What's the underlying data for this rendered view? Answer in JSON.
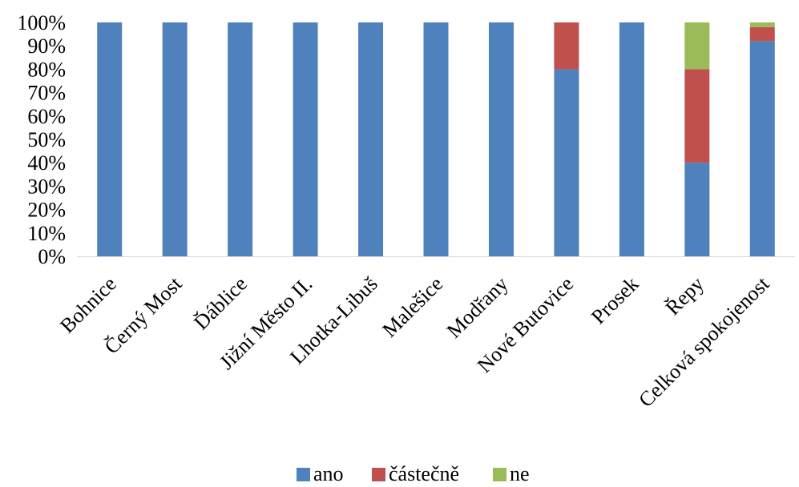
{
  "chart_data": {
    "type": "bar",
    "stacked": true,
    "percent_stacked": true,
    "categories": [
      "Bohnice",
      "Černý Most",
      "Ďáblice",
      "Jižní Město II.",
      "Lhotka-Libuš",
      "Malešice",
      "Modřany",
      "Nové Butovice",
      "Prosek",
      "Řepy",
      "Celková spokojenost"
    ],
    "series": [
      {
        "name": "ano",
        "color": "#4f81bd",
        "values": [
          100,
          100,
          100,
          100,
          100,
          100,
          100,
          80,
          100,
          40,
          92
        ]
      },
      {
        "name": "částečně",
        "color": "#c0504d",
        "values": [
          0,
          0,
          0,
          0,
          0,
          0,
          0,
          20,
          0,
          40,
          6
        ]
      },
      {
        "name": "ne",
        "color": "#9bbb59",
        "values": [
          0,
          0,
          0,
          0,
          0,
          0,
          0,
          0,
          0,
          20,
          2
        ]
      }
    ],
    "yticks": [
      "0%",
      "10%",
      "20%",
      "30%",
      "40%",
      "50%",
      "60%",
      "70%",
      "80%",
      "90%",
      "100%"
    ],
    "ylim": [
      0,
      100
    ],
    "grid": false,
    "legend_position": "bottom"
  }
}
